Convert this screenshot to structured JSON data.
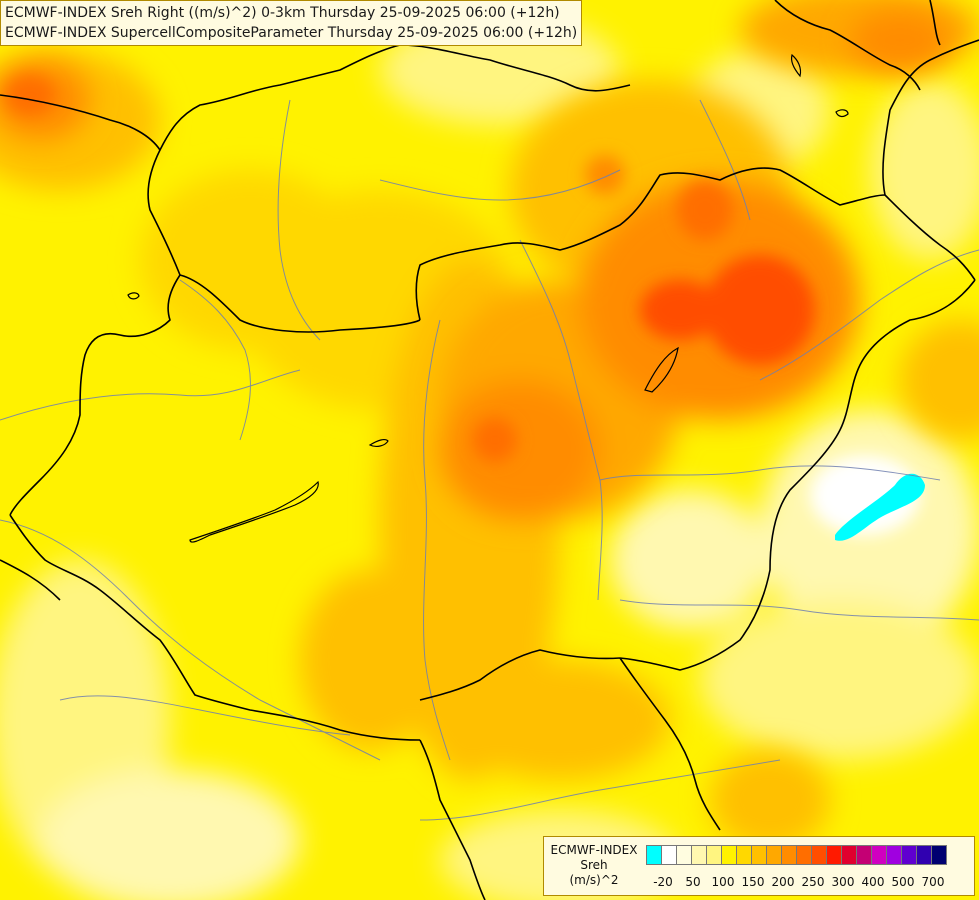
{
  "titles": {
    "line1": "ECMWF-INDEX Sreh Right ((m/s)^2) 0-3km Thursday 25-09-2025 06:00 (+12h)",
    "line2": "ECMWF-INDEX SupercellCompositeParameter Thursday 25-09-2025 06:00 (+12h)"
  },
  "legend": {
    "line1": "ECMWF-INDEX",
    "line2": "Sreh",
    "line3": "(m/s)^2",
    "colors": [
      "#00ffff",
      "#ffffff",
      "#fffde0",
      "#fff8b0",
      "#fff580",
      "#fff200",
      "#ffd800",
      "#ffc000",
      "#ffa800",
      "#ff8c00",
      "#ff6e00",
      "#ff4e00",
      "#ff1a00",
      "#e0002e",
      "#c40074",
      "#d000c0",
      "#a000e0",
      "#6000d0",
      "#3000b0",
      "#000070"
    ],
    "ticks": [
      {
        "label": "-20",
        "i": 1
      },
      {
        "label": "50",
        "i": 3
      },
      {
        "label": "100",
        "i": 5
      },
      {
        "label": "150",
        "i": 7
      },
      {
        "label": "200",
        "i": 9
      },
      {
        "label": "250",
        "i": 11
      },
      {
        "label": "300",
        "i": 13
      },
      {
        "label": "400",
        "i": 15
      },
      {
        "label": "500",
        "i": 17
      },
      {
        "label": "700",
        "i": 19
      }
    ]
  }
}
